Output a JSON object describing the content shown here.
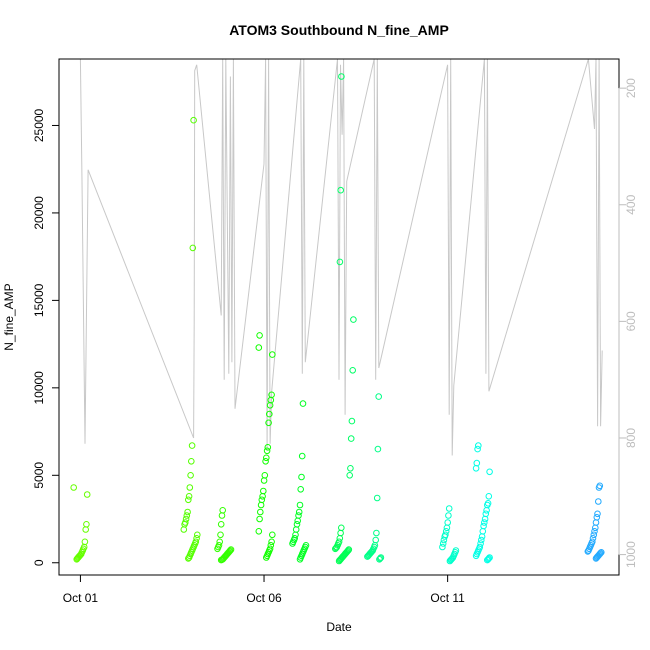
{
  "chart_data": {
    "type": "scatter",
    "title": "ATOM3 Southbound N_fine_AMP",
    "xlabel": "Date",
    "ylabel": "N_fine_AMP",
    "xlim": [
      "2023-09-30T10:00",
      "2023-10-15T16:00"
    ],
    "ylim": [
      -700,
      28800
    ],
    "x_ticks": [
      {
        "date": "2023-10-01",
        "label": "Oct 01"
      },
      {
        "date": "2023-10-06",
        "label": "Oct 06"
      },
      {
        "date": "2023-10-11",
        "label": "Oct 11"
      }
    ],
    "y_ticks": [
      {
        "value": 0,
        "label": "0"
      },
      {
        "value": 5000,
        "label": "5000"
      },
      {
        "value": 10000,
        "label": "10000"
      },
      {
        "value": 15000,
        "label": "15000"
      },
      {
        "value": 20000,
        "label": "20000"
      },
      {
        "value": 25000,
        "label": "25000"
      }
    ],
    "y2_axis": {
      "lim": [
        1035,
        150
      ],
      "ticks": [
        {
          "value": 200,
          "label": "200"
        },
        {
          "value": 400,
          "label": "400"
        },
        {
          "value": 600,
          "label": "600"
        },
        {
          "value": 800,
          "label": "800"
        },
        {
          "value": 1000,
          "label": "1000"
        }
      ],
      "color": "#bdbdbd"
    },
    "grid": false,
    "point_style": "open-circle",
    "line_color": "#c8c8c8",
    "clusters": [
      {
        "time": "2023-10-01T00:00",
        "color": "#66ff00",
        "values": [
          4300,
          3900,
          2200,
          1900,
          1200,
          900,
          800,
          700,
          600,
          500,
          450,
          400,
          350,
          300,
          250,
          200
        ]
      },
      {
        "time": "2023-10-04T00:00",
        "color": "#55ff00",
        "values": [
          25300,
          18000,
          6700,
          5800,
          5000,
          4300,
          3800,
          3600,
          2900,
          2700,
          2500,
          2300,
          2200,
          1900,
          1600,
          1400,
          1200,
          1100,
          1000,
          900,
          800,
          700,
          600,
          500,
          400,
          300,
          250
        ]
      },
      {
        "time": "2023-10-04T22:00",
        "color": "#33ff00",
        "values": [
          3000,
          2700,
          2200,
          1600,
          1200,
          1000,
          900,
          800,
          750,
          700,
          650,
          600,
          550,
          500,
          450,
          400,
          350,
          300,
          250,
          200,
          180,
          150
        ]
      },
      {
        "time": "2023-10-06T01:00",
        "color": "#11ff00",
        "values": [
          13000,
          12300,
          11900,
          9600,
          9300,
          9000,
          8500,
          8000,
          6600,
          6400,
          6000,
          5800,
          5000,
          4700,
          4100,
          3800,
          3600,
          3300,
          2900,
          2500,
          1800,
          1600,
          1200,
          1000,
          800,
          700,
          600,
          500,
          400,
          300
        ]
      },
      {
        "time": "2023-10-06T23:00",
        "color": "#00ff22",
        "values": [
          9100,
          6100,
          4900,
          4200,
          3300,
          2900,
          2700,
          2400,
          2200,
          1900,
          1600,
          1400,
          1300,
          1200,
          1100,
          1000,
          900,
          800,
          700,
          600,
          500,
          400,
          300,
          200
        ]
      },
      {
        "time": "2023-10-08T03:00",
        "color": "#00ff55",
        "values": [
          2000,
          1700,
          1400,
          1200,
          1100,
          1000,
          900,
          850,
          800,
          750,
          700,
          650,
          600,
          550,
          500,
          450,
          400,
          350,
          300,
          250,
          200,
          150,
          100
        ]
      },
      {
        "time": "2023-10-08T06:00",
        "color": "#00ff66",
        "values": [
          27800,
          21300,
          17200,
          13900,
          11000,
          8100,
          7100,
          5400,
          5000
        ]
      },
      {
        "time": "2023-10-09T00:00",
        "color": "#00ff88",
        "values": [
          9500,
          6500,
          3700,
          1700,
          1300,
          1000,
          900,
          800,
          700,
          650,
          600,
          550,
          500,
          450,
          400,
          350,
          300,
          250,
          200
        ]
      },
      {
        "time": "2023-10-11T01:00",
        "color": "#00ffcc",
        "values": [
          3100,
          2700,
          2300,
          2000,
          1800,
          1600,
          1500,
          1300,
          1100,
          900,
          700,
          600,
          500,
          400,
          300,
          250,
          200,
          150,
          100
        ]
      },
      {
        "time": "2023-10-11T23:00",
        "color": "#00ffe6",
        "values": [
          6700,
          6500,
          5700,
          5400,
          5200,
          3800,
          3400,
          3300,
          3000,
          2800,
          2500,
          2300,
          2100,
          1800,
          1500,
          1300,
          1100,
          900,
          800,
          700,
          600,
          500,
          400,
          300,
          250,
          200,
          150
        ]
      },
      {
        "time": "2023-10-15T00:00",
        "color": "#22aaff",
        "values": [
          4400,
          4300,
          3500,
          2800,
          2600,
          2300,
          2000,
          1800,
          1600,
          1400,
          1200,
          1100,
          1000,
          900,
          800,
          700,
          650,
          600,
          550,
          500,
          450,
          400,
          350,
          300,
          250
        ]
      }
    ],
    "y2_series": {
      "name": "",
      "color": "#c8c8c8",
      "points": [
        [
          "2023-10-01T00:00",
          150
        ],
        [
          "2023-10-01T01:00",
          360
        ],
        [
          "2023-10-01T03:00",
          810
        ],
        [
          "2023-10-01T05:00",
          340
        ],
        [
          "2023-10-04T02:00",
          800
        ],
        [
          "2023-10-04T02:20",
          600
        ],
        [
          "2023-10-04T02:40",
          170
        ],
        [
          "2023-10-04T04:00",
          160
        ],
        [
          "2023-10-04T20:00",
          590
        ],
        [
          "2023-10-04T21:00",
          150
        ],
        [
          "2023-10-04T22:00",
          700
        ],
        [
          "2023-10-04T23:00",
          150
        ],
        [
          "2023-10-05T01:00",
          690
        ],
        [
          "2023-10-05T02:00",
          180
        ],
        [
          "2023-10-05T03:00",
          670
        ],
        [
          "2023-10-05T04:00",
          150
        ],
        [
          "2023-10-05T05:00",
          750
        ],
        [
          "2023-10-06T00:00",
          330
        ],
        [
          "2023-10-06T01:00",
          150
        ],
        [
          "2023-10-06T02:00",
          820
        ],
        [
          "2023-10-06T03:00",
          150
        ],
        [
          "2023-10-06T04:00",
          810
        ],
        [
          "2023-10-06T05:00",
          720
        ],
        [
          "2023-10-07T00:00",
          150
        ],
        [
          "2023-10-07T01:00",
          690
        ],
        [
          "2023-10-07T02:00",
          150
        ],
        [
          "2023-10-07T03:00",
          670
        ],
        [
          "2023-10-08T00:00",
          150
        ],
        [
          "2023-10-08T01:00",
          700
        ],
        [
          "2023-10-08T02:00",
          160
        ],
        [
          "2023-10-08T03:00",
          280
        ],
        [
          "2023-10-08T04:00",
          150
        ],
        [
          "2023-10-08T05:00",
          760
        ],
        [
          "2023-10-08T06:00",
          360
        ],
        [
          "2023-10-09T00:00",
          150
        ],
        [
          "2023-10-09T01:00",
          700
        ],
        [
          "2023-10-09T02:00",
          150
        ],
        [
          "2023-10-09T03:00",
          680
        ],
        [
          "2023-10-11T00:00",
          160
        ],
        [
          "2023-10-11T01:00",
          760
        ],
        [
          "2023-10-11T02:00",
          150
        ],
        [
          "2023-10-11T03:00",
          830
        ],
        [
          "2023-10-11T04:00",
          710
        ],
        [
          "2023-10-12T00:00",
          150
        ],
        [
          "2023-10-12T01:00",
          690
        ],
        [
          "2023-10-12T02:00",
          150
        ],
        [
          "2023-10-12T03:00",
          720
        ],
        [
          "2023-10-14T20:00",
          150
        ],
        [
          "2023-10-15T00:00",
          270
        ],
        [
          "2023-10-15T01:00",
          150
        ],
        [
          "2023-10-15T02:00",
          780
        ],
        [
          "2023-10-15T03:00",
          150
        ],
        [
          "2023-10-15T04:00",
          780
        ],
        [
          "2023-10-15T05:00",
          650
        ]
      ]
    }
  }
}
